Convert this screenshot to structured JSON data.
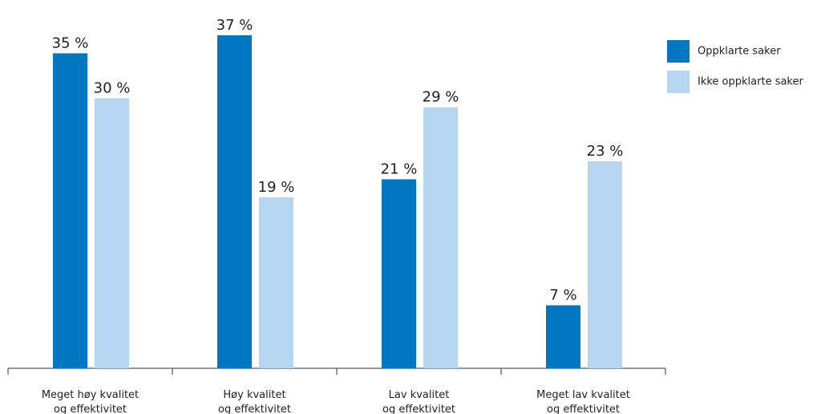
{
  "chart_data": {
    "type": "bar",
    "categories": [
      [
        "Meget høy kvalitet",
        "og effektivitet"
      ],
      [
        "Høy kvalitet",
        "og effektivitet"
      ],
      [
        "Lav kvalitet",
        "og effektivitet"
      ],
      [
        "Meget lav kvalitet",
        "og effektivitet"
      ]
    ],
    "series": [
      {
        "name": "Oppklarte saker",
        "color": "#0077c0",
        "values": [
          35,
          37,
          21,
          7
        ],
        "value_labels": [
          "35 %",
          "37 %",
          "21 %",
          "7 %"
        ]
      },
      {
        "name": "Ikke oppklarte saker",
        "color": "#b5d5f0",
        "values": [
          30,
          19,
          29,
          23
        ],
        "value_labels": [
          "30 %",
          "19 %",
          "29 %",
          "23 %"
        ]
      }
    ],
    "legend": "top-right"
  }
}
